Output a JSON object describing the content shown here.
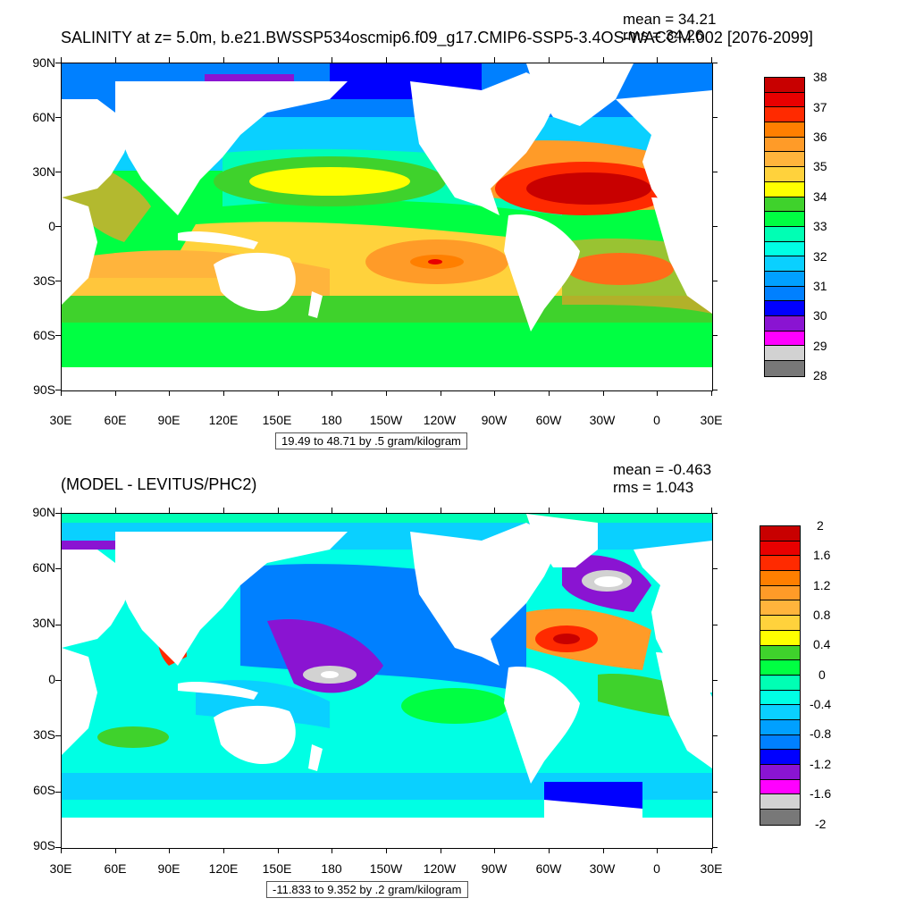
{
  "panels": [
    {
      "title": "SALINITY at z=   5.0m, b.e21.BWSSP534oscmip6.f09_g17.CMIP6-SSP5-3.4OS-WACCM.002 [2076-2099]",
      "mean": "mean = 34.21",
      "rms": "rms = 34.26",
      "range": "19.49 to 48.71 by .5 gram/kilogram",
      "lat_labels": [
        "90N",
        "60N",
        "30N",
        "0",
        "30S",
        "60S",
        "90S"
      ],
      "lon_labels": [
        "30E",
        "60E",
        "90E",
        "120E",
        "150E",
        "180",
        "150W",
        "120W",
        "90W",
        "60W",
        "30W",
        "0",
        "30E"
      ],
      "colorbar": {
        "labels": [
          "38",
          "37",
          "36",
          "35",
          "34",
          "33",
          "32",
          "31",
          "30",
          "29",
          "28"
        ],
        "colors": [
          "#c80000",
          "#e80000",
          "#ff2a00",
          "#ff7f00",
          "#ff9b28",
          "#ffb43c",
          "#ffd23c",
          "#ffff00",
          "#3fd22c",
          "#00ff42",
          "#00ffb4",
          "#00ffe4",
          "#0ad0ff",
          "#00a0ff",
          "#0080ff",
          "#0000ff",
          "#8a14d2",
          "#ff00ff",
          "#d2d2d2",
          "#787878"
        ]
      }
    },
    {
      "title": "(MODEL - LEVITUS/PHC2)",
      "mean": "mean = -0.463",
      "rms": "rms = 1.043",
      "range": "-11.833 to 9.352 by .2 gram/kilogram",
      "lat_labels": [
        "90N",
        "60N",
        "30N",
        "0",
        "30S",
        "60S",
        "90S"
      ],
      "lon_labels": [
        "30E",
        "60E",
        "90E",
        "120E",
        "150E",
        "180",
        "150W",
        "120W",
        "90W",
        "60W",
        "30W",
        "0",
        "30E"
      ],
      "colorbar": {
        "labels": [
          "2",
          "1.6",
          "1.2",
          "0.8",
          "0.4",
          "0",
          "-0.4",
          "-0.8",
          "-1.2",
          "-1.6",
          "-2"
        ],
        "colors": [
          "#c80000",
          "#e80000",
          "#ff2a00",
          "#ff7f00",
          "#ff9b28",
          "#ffb43c",
          "#ffd23c",
          "#ffff00",
          "#3fd22c",
          "#00ff42",
          "#00ffb4",
          "#00ffe4",
          "#0ad0ff",
          "#00a0ff",
          "#0080ff",
          "#0000ff",
          "#8a14d2",
          "#ff00ff",
          "#d2d2d2",
          "#787878"
        ]
      }
    }
  ]
}
